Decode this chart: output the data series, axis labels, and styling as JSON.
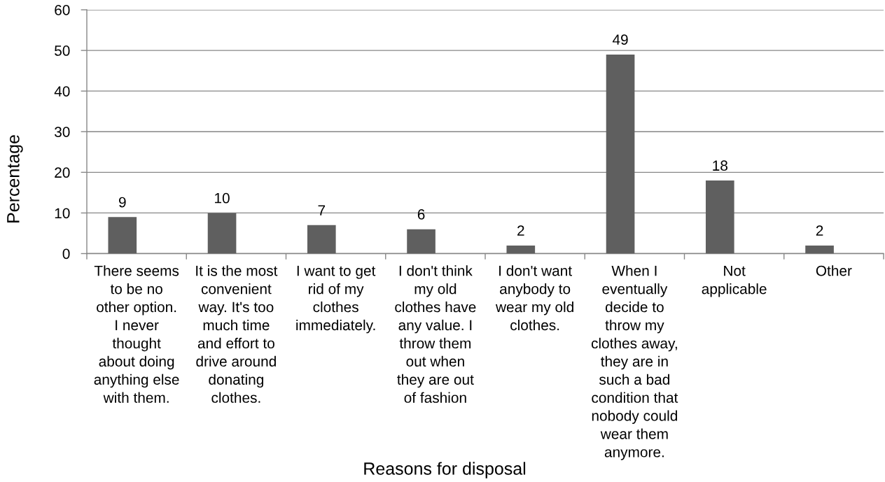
{
  "chart_data": {
    "type": "bar",
    "xlabel": "Reasons for disposal",
    "ylabel": "Percentage",
    "categories": [
      "There seems\nto be no\nother option.\nI never\nthought\nabout doing\nanything else\nwith them.",
      "It is the most\nconvenient\nway. It's too\nmuch time\nand effort to\ndrive around\ndonating\nclothes.",
      "I want to get\nrid of my\nclothes\nimmediately.",
      "I don't think\nmy old\nclothes have\nany value. I\nthrow them\nout when\nthey are out\nof fashion",
      "I don't want\nanybody to\nwear my old\nclothes.",
      "When I\neventually\ndecide to\nthrow my\nclothes away,\nthey are in\nsuch a bad\ncondition that\nnobody could\nwear them\nanymore.",
      "Not\napplicable",
      "Other"
    ],
    "values": [
      9,
      10,
      7,
      6,
      2,
      49,
      18,
      2
    ],
    "color": "#5f5f5f",
    "ylim": [
      0,
      60
    ],
    "yticks": [
      0,
      10,
      20,
      30,
      40,
      50,
      60
    ],
    "grid": "y",
    "data_labels": true
  }
}
